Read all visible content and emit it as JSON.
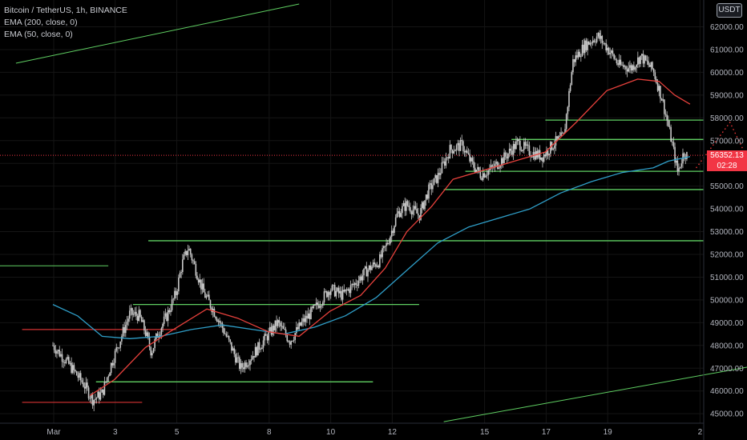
{
  "legend": {
    "symbol": "Bitcoin / TetherUS, 1h, BINANCE",
    "ema200": "EMA (200, close, 0)",
    "ema50": "EMA (50, close, 0)"
  },
  "currency_badge": "USDT",
  "price_tag": {
    "price": "56352.13",
    "countdown": "02:28",
    "color": "#f23645"
  },
  "colors": {
    "background": "#000000",
    "grid": "#151515",
    "candle": "#c8c8c8",
    "ema50": "#e8413c",
    "ema200": "#2f9fc9",
    "levels": "#5fcf62",
    "forecast": "#ff3b3b",
    "current_price_line": "#f23645",
    "red_level": "#d53333"
  },
  "chart_data": {
    "type": "candlestick",
    "symbol": "BTCUSDT",
    "timeframe": "1h",
    "exchange": "BINANCE",
    "y_tick_labels": [
      "45000.00",
      "46000.00",
      "47000.00",
      "48000.00",
      "49000.00",
      "50000.00",
      "51000.00",
      "52000.00",
      "53000.00",
      "54000.00",
      "55000.00",
      "56000.00",
      "57000.00",
      "58000.00",
      "59000.00",
      "60000.00",
      "61000.00",
      "62000.00"
    ],
    "x_tick_labels": [
      "Mar",
      "3",
      "5",
      "8",
      "10",
      "12",
      "15",
      "17",
      "19",
      "2"
    ],
    "ylim": [
      44600,
      63000
    ],
    "last_price": 56352.13,
    "close_path": [
      {
        "d": 0.0,
        "p": 48000
      },
      {
        "d": 0.5,
        "p": 47200
      },
      {
        "d": 1.0,
        "p": 46300
      },
      {
        "d": 1.3,
        "p": 45600
      },
      {
        "d": 1.6,
        "p": 45900
      },
      {
        "d": 1.9,
        "p": 47200
      },
      {
        "d": 2.2,
        "p": 48300
      },
      {
        "d": 2.5,
        "p": 49400
      },
      {
        "d": 2.8,
        "p": 49300
      },
      {
        "d": 3.0,
        "p": 48600
      },
      {
        "d": 3.2,
        "p": 47700
      },
      {
        "d": 3.4,
        "p": 48500
      },
      {
        "d": 3.7,
        "p": 49300
      },
      {
        "d": 4.0,
        "p": 50300
      },
      {
        "d": 4.2,
        "p": 51600
      },
      {
        "d": 4.4,
        "p": 52300
      },
      {
        "d": 4.6,
        "p": 51500
      },
      {
        "d": 4.9,
        "p": 50300
      },
      {
        "d": 5.2,
        "p": 49600
      },
      {
        "d": 5.5,
        "p": 48800
      },
      {
        "d": 5.8,
        "p": 47900
      },
      {
        "d": 6.1,
        "p": 47000
      },
      {
        "d": 6.5,
        "p": 47600
      },
      {
        "d": 6.9,
        "p": 48300
      },
      {
        "d": 7.3,
        "p": 49000
      },
      {
        "d": 7.7,
        "p": 48200
      },
      {
        "d": 8.1,
        "p": 49000
      },
      {
        "d": 8.5,
        "p": 49600
      },
      {
        "d": 9.0,
        "p": 50500
      },
      {
        "d": 9.4,
        "p": 50200
      },
      {
        "d": 9.8,
        "p": 50700
      },
      {
        "d": 10.2,
        "p": 51300
      },
      {
        "d": 10.6,
        "p": 51700
      },
      {
        "d": 10.9,
        "p": 52600
      },
      {
        "d": 11.2,
        "p": 53800
      },
      {
        "d": 11.5,
        "p": 54200
      },
      {
        "d": 11.9,
        "p": 53700
      },
      {
        "d": 12.2,
        "p": 54800
      },
      {
        "d": 12.5,
        "p": 55400
      },
      {
        "d": 12.9,
        "p": 56600
      },
      {
        "d": 13.3,
        "p": 56800
      },
      {
        "d": 13.6,
        "p": 56000
      },
      {
        "d": 13.9,
        "p": 55500
      },
      {
        "d": 14.3,
        "p": 55800
      },
      {
        "d": 14.7,
        "p": 56300
      },
      {
        "d": 15.1,
        "p": 56900
      },
      {
        "d": 15.5,
        "p": 56500
      },
      {
        "d": 15.9,
        "p": 56300
      },
      {
        "d": 16.3,
        "p": 56900
      },
      {
        "d": 16.6,
        "p": 57200
      },
      {
        "d": 16.9,
        "p": 60500
      },
      {
        "d": 17.3,
        "p": 61200
      },
      {
        "d": 17.7,
        "p": 61600
      },
      {
        "d": 18.0,
        "p": 61100
      },
      {
        "d": 18.4,
        "p": 60300
      },
      {
        "d": 18.8,
        "p": 60200
      },
      {
        "d": 19.1,
        "p": 60700
      },
      {
        "d": 19.5,
        "p": 60100
      },
      {
        "d": 19.8,
        "p": 58800
      },
      {
        "d": 20.1,
        "p": 57000
      },
      {
        "d": 20.3,
        "p": 55600
      },
      {
        "d": 20.5,
        "p": 56500
      },
      {
        "d": 20.6,
        "p": 56350
      }
    ],
    "ema50_path": [
      {
        "d": 1.2,
        "p": 45800
      },
      {
        "d": 2.0,
        "p": 46500
      },
      {
        "d": 3.0,
        "p": 47900
      },
      {
        "d": 3.8,
        "p": 48600
      },
      {
        "d": 5.0,
        "p": 49600
      },
      {
        "d": 6.0,
        "p": 49200
      },
      {
        "d": 7.0,
        "p": 48600
      },
      {
        "d": 8.0,
        "p": 48400
      },
      {
        "d": 9.0,
        "p": 49500
      },
      {
        "d": 10.0,
        "p": 50200
      },
      {
        "d": 10.8,
        "p": 51400
      },
      {
        "d": 11.5,
        "p": 53000
      },
      {
        "d": 12.3,
        "p": 54100
      },
      {
        "d": 13.0,
        "p": 55300
      },
      {
        "d": 14.0,
        "p": 55700
      },
      {
        "d": 15.0,
        "p": 56100
      },
      {
        "d": 16.0,
        "p": 56500
      },
      {
        "d": 17.0,
        "p": 57800
      },
      {
        "d": 18.0,
        "p": 59200
      },
      {
        "d": 19.0,
        "p": 59700
      },
      {
        "d": 19.7,
        "p": 59600
      },
      {
        "d": 20.2,
        "p": 59000
      },
      {
        "d": 20.7,
        "p": 58600
      }
    ],
    "ema200_path": [
      {
        "d": 0.0,
        "p": 49800
      },
      {
        "d": 0.8,
        "p": 49300
      },
      {
        "d": 1.6,
        "p": 48400
      },
      {
        "d": 2.5,
        "p": 48300
      },
      {
        "d": 3.5,
        "p": 48400
      },
      {
        "d": 4.5,
        "p": 48700
      },
      {
        "d": 5.5,
        "p": 48900
      },
      {
        "d": 6.5,
        "p": 48700
      },
      {
        "d": 7.5,
        "p": 48500
      },
      {
        "d": 8.5,
        "p": 48800
      },
      {
        "d": 9.5,
        "p": 49300
      },
      {
        "d": 10.5,
        "p": 50100
      },
      {
        "d": 11.5,
        "p": 51300
      },
      {
        "d": 12.5,
        "p": 52500
      },
      {
        "d": 13.5,
        "p": 53200
      },
      {
        "d": 14.5,
        "p": 53600
      },
      {
        "d": 15.5,
        "p": 54000
      },
      {
        "d": 16.5,
        "p": 54700
      },
      {
        "d": 17.5,
        "p": 55200
      },
      {
        "d": 18.5,
        "p": 55600
      },
      {
        "d": 19.5,
        "p": 55800
      },
      {
        "d": 20.0,
        "p": 56100
      },
      {
        "d": 20.7,
        "p": 56300
      }
    ],
    "horizontal_levels": [
      {
        "price": 57900,
        "d_start": 16.0,
        "d_end": 24.4
      },
      {
        "price": 57050,
        "d_start": 14.9,
        "d_end": 23.3
      },
      {
        "price": 55650,
        "d_start": 13.4,
        "d_end": 22.2
      },
      {
        "price": 54850,
        "d_start": 12.7,
        "d_end": 21.7
      },
      {
        "price": 52600,
        "d_start": 3.1,
        "d_end": 29.9
      },
      {
        "price": 49800,
        "d_start": 2.6,
        "d_end": 11.9
      },
      {
        "price": 46400,
        "d_start": 1.4,
        "d_end": 10.4
      }
    ],
    "red_levels": [
      {
        "price": 48700,
        "d_start": -1.0,
        "d_end": 4.0
      },
      {
        "price": 45500,
        "d_start": -1.0,
        "d_end": 2.9
      }
    ],
    "small_green_level": {
      "price": 51500,
      "d_start": -1.0,
      "d_end": 1.8
    },
    "trendlines": [
      {
        "from": {
          "d": -1.2,
          "p": 60400
        },
        "to": {
          "d": 8.0,
          "p": 63000
        }
      },
      {
        "from": {
          "d": 12.7,
          "p": 44650
        },
        "to": {
          "d": 31.0,
          "p": 49100
        }
      }
    ],
    "forecast_path": [
      {
        "d": 20.9,
        "p": 55800
      },
      {
        "d": 22.0,
        "p": 57800
      },
      {
        "d": 23.6,
        "p": 53300
      },
      {
        "d": 26.6,
        "p": 61900
      }
    ]
  }
}
